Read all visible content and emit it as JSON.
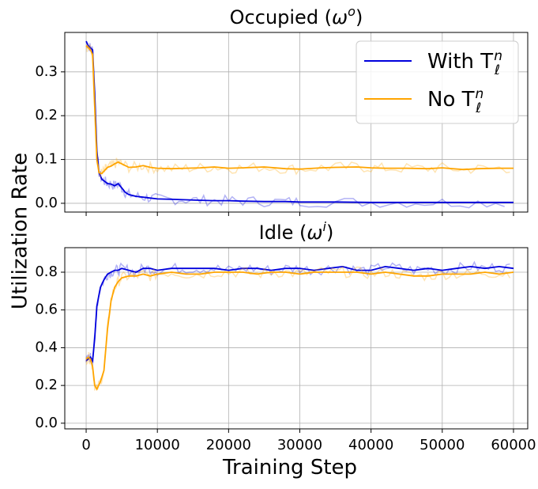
{
  "figure": {
    "ylabel": "Utilization Rate",
    "xlabel": "Training Step"
  },
  "colors": {
    "with": "#0000dd",
    "without": "#ffa500"
  },
  "legend": {
    "with_label": "With T",
    "without_label": "No T",
    "symbol_sup": "n",
    "symbol_sub": "ℓ",
    "placement": "top-right"
  },
  "chart_data": [
    {
      "type": "line",
      "title_main": "Occupied (",
      "title_sym": "ω",
      "title_sup": "o",
      "title_end": ")",
      "xlim": [
        -3000,
        62000
      ],
      "ylim": [
        -0.02,
        0.39
      ],
      "x_ticks": [
        0,
        10000,
        20000,
        30000,
        40000,
        50000,
        60000
      ],
      "y_ticks": [
        0.0,
        0.1,
        0.2,
        0.3
      ],
      "y_tick_labels": [
        "0.0",
        "0.1",
        "0.2",
        "0.3"
      ],
      "x_tick_labels_visible": false,
      "grid": true,
      "series": [
        {
          "name": "With T_ℓ^n",
          "color_key": "with",
          "x": [
            0,
            300,
            600,
            900,
            1200,
            1500,
            1800,
            2200,
            2600,
            3000,
            3500,
            4000,
            4500,
            5000,
            5500,
            6000,
            7000,
            8000,
            9000,
            10000,
            12000,
            14000,
            16000,
            18000,
            20000,
            22000,
            25000,
            28000,
            30000,
            35000,
            40000,
            45000,
            50000,
            55000,
            60000
          ],
          "y": [
            0.37,
            0.36,
            0.355,
            0.35,
            0.25,
            0.12,
            0.07,
            0.055,
            0.05,
            0.045,
            0.044,
            0.04,
            0.045,
            0.035,
            0.025,
            0.02,
            0.016,
            0.014,
            0.012,
            0.01,
            0.009,
            0.008,
            0.007,
            0.006,
            0.006,
            0.005,
            0.004,
            0.004,
            0.003,
            0.003,
            0.002,
            0.002,
            0.002,
            0.002,
            0.002
          ]
        },
        {
          "name": "No T_ℓ^n",
          "color_key": "without",
          "x": [
            0,
            300,
            600,
            900,
            1200,
            1500,
            1800,
            2200,
            2600,
            3000,
            3500,
            4000,
            4500,
            5000,
            6000,
            7000,
            8000,
            9000,
            10000,
            12000,
            14000,
            16000,
            18000,
            20000,
            22000,
            25000,
            28000,
            30000,
            33000,
            35000,
            38000,
            40000,
            42000,
            45000,
            48000,
            50000,
            53000,
            55000,
            58000,
            60000
          ],
          "y": [
            0.36,
            0.355,
            0.35,
            0.34,
            0.22,
            0.1,
            0.07,
            0.068,
            0.075,
            0.082,
            0.085,
            0.09,
            0.094,
            0.09,
            0.082,
            0.083,
            0.086,
            0.082,
            0.08,
            0.079,
            0.08,
            0.081,
            0.083,
            0.08,
            0.081,
            0.083,
            0.079,
            0.078,
            0.081,
            0.082,
            0.083,
            0.081,
            0.08,
            0.08,
            0.079,
            0.081,
            0.077,
            0.079,
            0.08,
            0.08
          ]
        }
      ]
    },
    {
      "type": "line",
      "title_main": "Idle (",
      "title_sym": "ω",
      "title_sup": "i",
      "title_end": ")",
      "xlim": [
        -3000,
        62000
      ],
      "ylim": [
        -0.03,
        0.93
      ],
      "x_ticks": [
        0,
        10000,
        20000,
        30000,
        40000,
        50000,
        60000
      ],
      "x_tick_labels": [
        "0",
        "10000",
        "20000",
        "30000",
        "40000",
        "50000",
        "60000"
      ],
      "y_ticks": [
        0.0,
        0.2,
        0.4,
        0.6,
        0.8
      ],
      "y_tick_labels": [
        "0.0",
        "0.2",
        "0.4",
        "0.6",
        "0.8"
      ],
      "grid": true,
      "series": [
        {
          "name": "With T_ℓ^n",
          "color_key": "with",
          "x": [
            0,
            300,
            600,
            900,
            1200,
            1500,
            2000,
            2500,
            3000,
            3500,
            4000,
            4500,
            5000,
            6000,
            7000,
            8000,
            9000,
            10000,
            12000,
            14000,
            16000,
            18000,
            20000,
            22000,
            24000,
            26000,
            28000,
            30000,
            32000,
            34000,
            36000,
            38000,
            40000,
            42000,
            44000,
            46000,
            48000,
            50000,
            52000,
            54000,
            56000,
            58000,
            60000
          ],
          "y": [
            0.33,
            0.34,
            0.35,
            0.33,
            0.45,
            0.62,
            0.72,
            0.76,
            0.79,
            0.8,
            0.81,
            0.81,
            0.82,
            0.81,
            0.8,
            0.82,
            0.82,
            0.81,
            0.82,
            0.82,
            0.82,
            0.82,
            0.81,
            0.82,
            0.82,
            0.81,
            0.82,
            0.82,
            0.81,
            0.82,
            0.83,
            0.81,
            0.81,
            0.83,
            0.82,
            0.81,
            0.82,
            0.81,
            0.82,
            0.83,
            0.82,
            0.83,
            0.82
          ]
        },
        {
          "name": "No T_ℓ^n",
          "color_key": "without",
          "x": [
            0,
            300,
            600,
            900,
            1200,
            1500,
            2000,
            2500,
            3000,
            3500,
            4000,
            4500,
            5000,
            6000,
            7000,
            8000,
            9000,
            10000,
            12000,
            14000,
            16000,
            18000,
            20000,
            22000,
            24000,
            26000,
            28000,
            30000,
            32000,
            34000,
            36000,
            38000,
            40000,
            42000,
            44000,
            46000,
            48000,
            50000,
            52000,
            54000,
            56000,
            58000,
            60000
          ],
          "y": [
            0.34,
            0.35,
            0.34,
            0.3,
            0.2,
            0.18,
            0.22,
            0.28,
            0.5,
            0.65,
            0.72,
            0.75,
            0.77,
            0.78,
            0.78,
            0.79,
            0.78,
            0.79,
            0.8,
            0.79,
            0.79,
            0.8,
            0.8,
            0.8,
            0.79,
            0.8,
            0.8,
            0.79,
            0.8,
            0.8,
            0.8,
            0.8,
            0.79,
            0.8,
            0.79,
            0.78,
            0.78,
            0.79,
            0.79,
            0.79,
            0.8,
            0.79,
            0.8
          ]
        }
      ]
    }
  ]
}
